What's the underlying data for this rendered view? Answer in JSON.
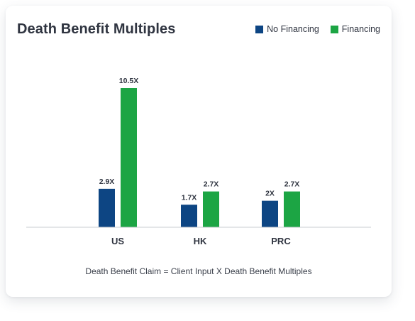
{
  "colors": {
    "no_financing": "#0d4583",
    "financing": "#1ca544",
    "axis": "#c8ccd2",
    "text": "#2f3440"
  },
  "chart_data": {
    "type": "bar",
    "title": "Death Benefit Multiples",
    "categories": [
      "US",
      "HK",
      "PRC"
    ],
    "series": [
      {
        "name": "No Financing",
        "values": [
          2.9,
          1.7,
          2
        ],
        "labels": [
          "2.9X",
          "1.7X",
          "2X"
        ]
      },
      {
        "name": "Financing",
        "values": [
          10.5,
          2.7,
          2.7
        ],
        "labels": [
          "10.5X",
          "2.7X",
          "2.7X"
        ]
      }
    ],
    "ylim": [
      0,
      10.5
    ],
    "grid": false,
    "legend_position": "top-right",
    "caption": "Death Benefit Claim = Client Input X Death Benefit Multiples"
  }
}
